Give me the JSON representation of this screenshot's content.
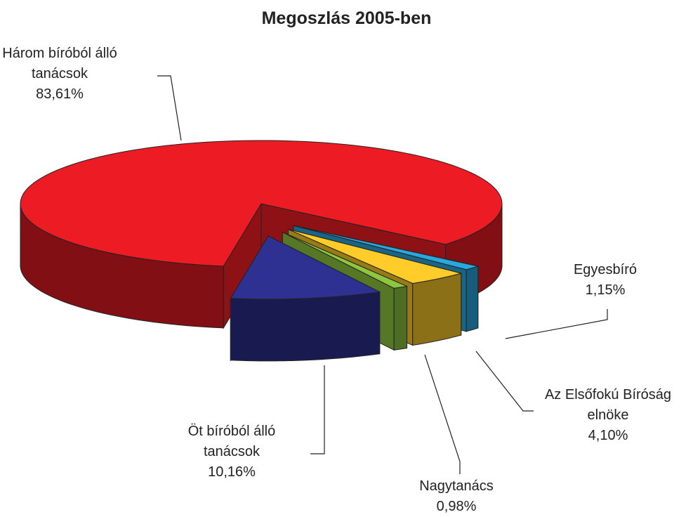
{
  "chart_data": {
    "type": "pie3d",
    "title": "Megoszlás 2005-ben",
    "categories": [
      "Három bíróból álló tanácsok",
      "Egyesbíró",
      "Az Elsőfokú Bíróság elnöke",
      "Nagytanács",
      "Öt bíróból álló tanácsok"
    ],
    "values": [
      83.61,
      1.15,
      4.1,
      0.98,
      10.16
    ],
    "value_labels": [
      "83,61%",
      "1,15%",
      "4,10%",
      "0,98%",
      "10,16%"
    ],
    "colors": [
      "#ed1c24",
      "#29a8df",
      "#ffcc29",
      "#8dc63f",
      "#2e3192"
    ]
  }
}
